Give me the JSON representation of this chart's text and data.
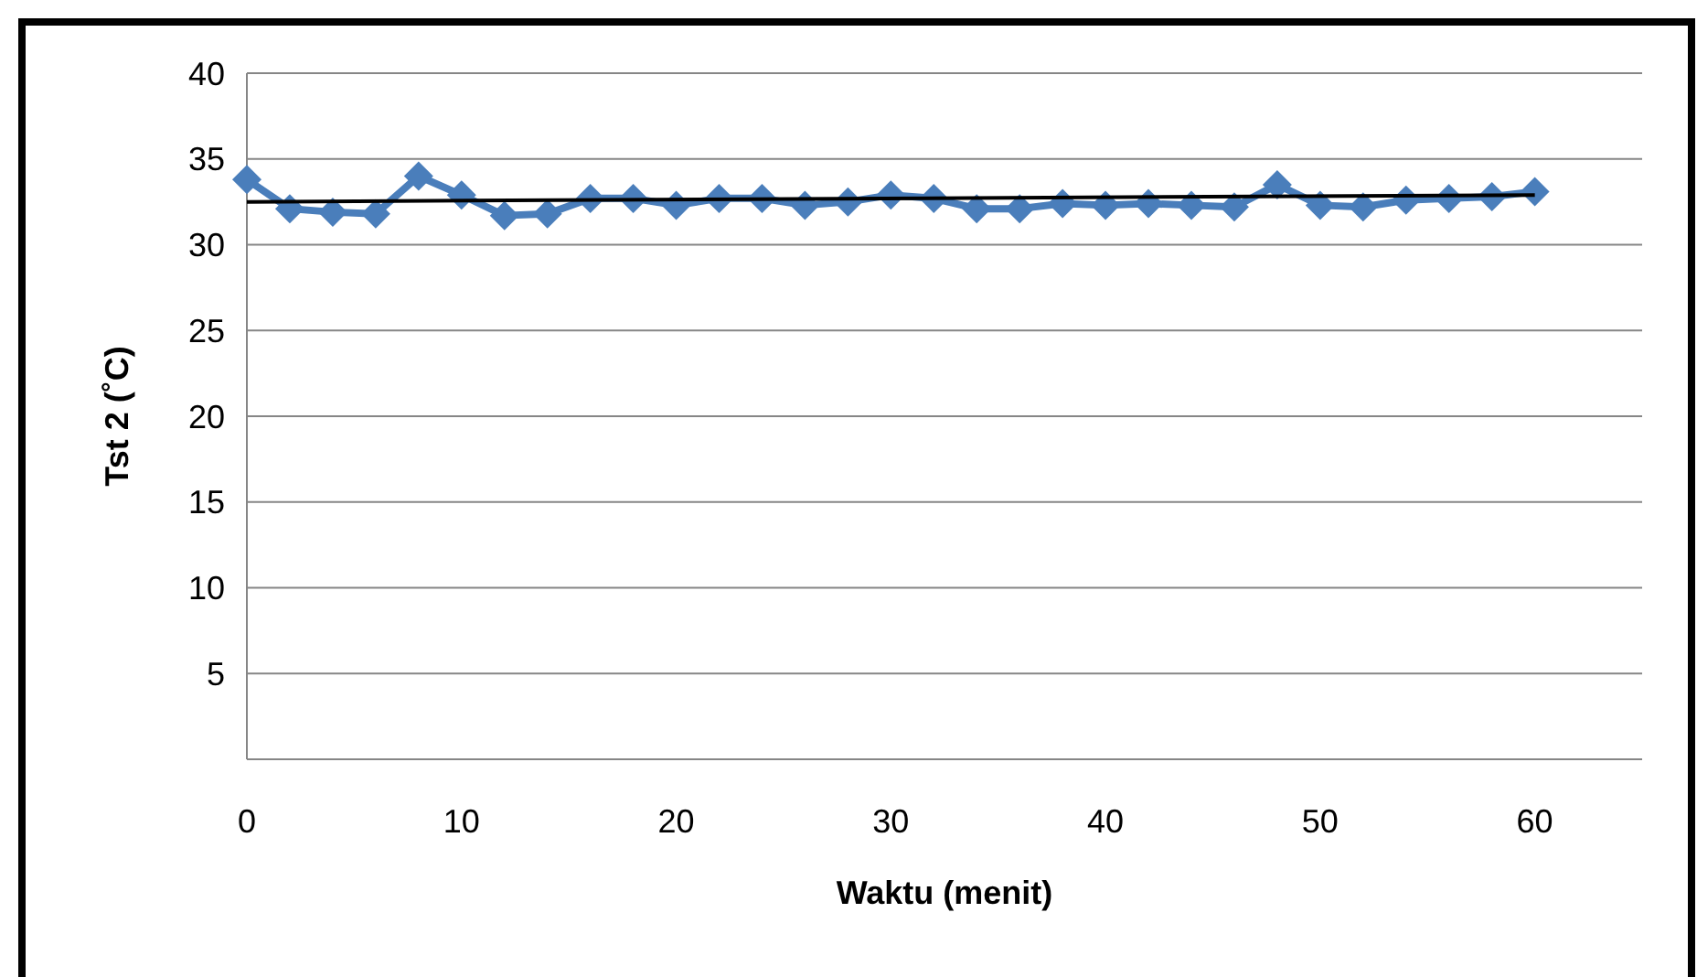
{
  "chart_data": {
    "type": "line",
    "xlabel": "Waktu (menit)",
    "ylabel": "Tst 2 (˚C)",
    "xlim": [
      0,
      65
    ],
    "xticks": [
      0,
      10,
      20,
      30,
      40,
      50,
      60
    ],
    "ylim": [
      0,
      40
    ],
    "yticks": [
      {
        "value": 0,
        "label": null
      },
      5,
      10,
      15,
      20,
      25,
      30,
      35,
      40
    ],
    "grid": "y",
    "marker": "diamond",
    "line_style": "solid",
    "series": [
      {
        "color": "#4a7ebb",
        "x": [
          0,
          2,
          4,
          6,
          8,
          10,
          12,
          14,
          16,
          18,
          20,
          22,
          24,
          26,
          28,
          30,
          32,
          34,
          36,
          38,
          40,
          42,
          44,
          46,
          48,
          50,
          52,
          54,
          56,
          58,
          60
        ],
        "values": [
          33.8,
          32.1,
          31.9,
          31.8,
          34.0,
          32.9,
          31.7,
          31.8,
          32.7,
          32.7,
          32.3,
          32.7,
          32.7,
          32.3,
          32.5,
          32.9,
          32.7,
          32.1,
          32.1,
          32.4,
          32.3,
          32.4,
          32.3,
          32.2,
          33.5,
          32.3,
          32.2,
          32.6,
          32.7,
          32.8,
          33.1
        ]
      },
      {
        "type": "line",
        "color": "#000000",
        "marker": "none",
        "x": [
          0,
          60
        ],
        "values": [
          32.5,
          32.9
        ]
      }
    ]
  }
}
